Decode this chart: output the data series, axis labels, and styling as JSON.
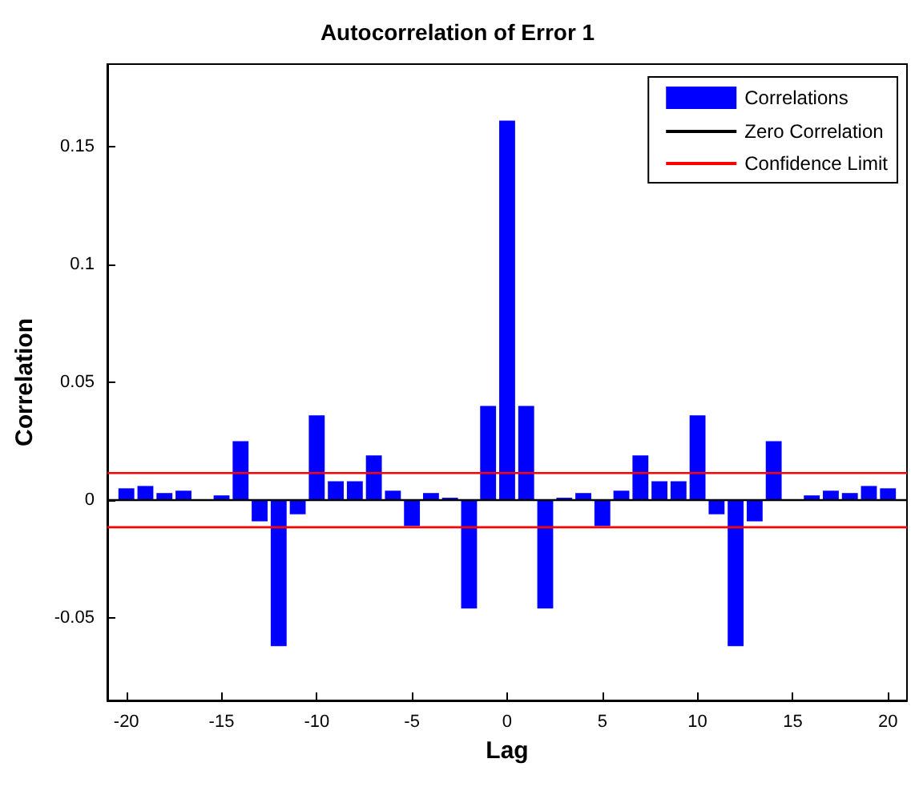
{
  "chart_data": {
    "type": "bar",
    "title": "Autocorrelation of Error 1",
    "xlabel": "Lag",
    "ylabel": "Correlation",
    "x": [
      -20,
      -19,
      -18,
      -17,
      -16,
      -15,
      -14,
      -13,
      -12,
      -11,
      -10,
      -9,
      -8,
      -7,
      -6,
      -5,
      -4,
      -3,
      -2,
      -1,
      0,
      1,
      2,
      3,
      4,
      5,
      6,
      7,
      8,
      9,
      10,
      11,
      12,
      13,
      14,
      15,
      16,
      17,
      18,
      19,
      20
    ],
    "series": [
      {
        "name": "Correlations",
        "color": "#0000ff",
        "values": [
          0.005,
          0.006,
          0.003,
          0.004,
          0,
          0.002,
          0.025,
          -0.009,
          -0.062,
          -0.006,
          0.036,
          0.008,
          0.008,
          0.019,
          0.004,
          -0.011,
          0.003,
          0.001,
          -0.046,
          0.04,
          0.161,
          0.04,
          -0.046,
          0.001,
          0.003,
          -0.011,
          0.004,
          0.019,
          0.008,
          0.008,
          0.036,
          -0.006,
          -0.062,
          -0.009,
          0.025,
          0,
          0.002,
          0.004,
          0.003,
          0.006,
          0.005
        ]
      }
    ],
    "ref_lines": [
      {
        "axis": "y",
        "value": 0,
        "label": "Zero Correlation",
        "color": "#000000"
      },
      {
        "axis": "y",
        "value": 0.0115,
        "label": "Confidence Limit",
        "color": "#ff0000"
      },
      {
        "axis": "y",
        "value": -0.0115,
        "color": "#ff0000"
      }
    ],
    "xlim": [
      -21,
      21
    ],
    "xticks": [
      -20,
      -15,
      -10,
      -5,
      0,
      5,
      10,
      15,
      20
    ],
    "ylim": [
      -0.085,
      0.185
    ],
    "yticks": [
      -0.05,
      0,
      0.05,
      0.1,
      0.15
    ],
    "grid": false,
    "legend": "top right"
  }
}
